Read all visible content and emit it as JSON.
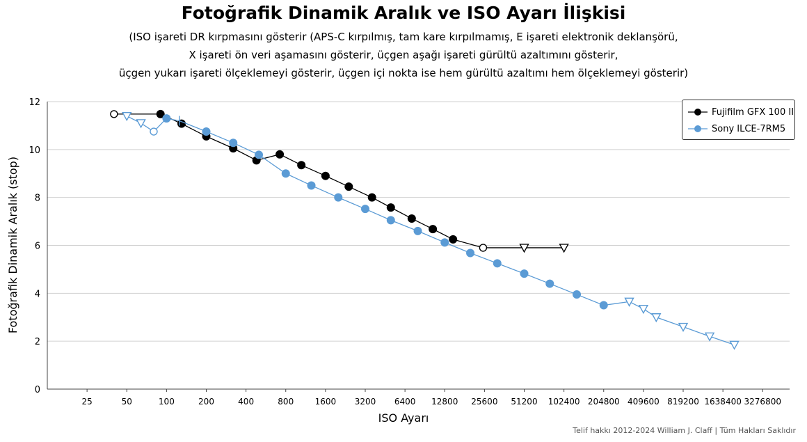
{
  "chart_data": {
    "type": "line",
    "title": "Fotoğrafik Dinamik Aralık ve ISO Ayarı İlişkisi",
    "subtitle_lines": [
      "(ISO işareti DR kırpmasını gösterir (APS-C kırpılmış, tam kare kırpılmamış, E işareti elektronik deklanşörü,",
      "X işareti ön veri aşamasını gösterir, üçgen aşağı işareti gürültü azaltımını gösterir,",
      "üçgen yukarı işareti ölçeklemeyi gösterir, üçgen içi nokta ise hem gürültü azaltımı hem ölçeklemeyi gösterir)"
    ],
    "xlabel": "ISO Ayarı",
    "ylabel": "Fotoğrafik Dinamik Aralık (stop)",
    "x_scale": "log2",
    "x_ticks": [
      25,
      50,
      100,
      200,
      400,
      800,
      1600,
      3200,
      6400,
      12800,
      25600,
      51200,
      102400,
      204800,
      409600,
      819200,
      1638400,
      3276800
    ],
    "x_tick_labels": [
      "25",
      "50",
      "100",
      "200",
      "400",
      "800",
      "1600",
      "3200",
      "6400",
      "12800",
      "25600",
      "51200",
      "102400",
      "204800",
      "409600",
      "819200",
      "1638400",
      "3276800"
    ],
    "ylim": [
      0,
      12
    ],
    "y_ticks": [
      0,
      2,
      4,
      6,
      8,
      10,
      12
    ],
    "y_tick_labels": [
      "0",
      "2",
      "4",
      "6",
      "8",
      "10",
      "12"
    ],
    "grid": true,
    "legend_position": "top-right",
    "copyright": "Telif hakkı 2012-2024 William J. Claff | Tüm Hakları Saklıdır",
    "series": [
      {
        "name": "Fujifilm GFX 100 II",
        "color": "#000000",
        "points": [
          {
            "x": 40,
            "y": 11.48,
            "marker": "open-circle"
          },
          {
            "x": 90,
            "y": 11.48,
            "marker": "circle"
          },
          {
            "x": 130,
            "y": 11.08,
            "marker": "circle"
          },
          {
            "x": 200,
            "y": 10.55,
            "marker": "circle"
          },
          {
            "x": 320,
            "y": 10.05,
            "marker": "circle"
          },
          {
            "x": 480,
            "y": 9.55,
            "marker": "circle"
          },
          {
            "x": 720,
            "y": 9.8,
            "marker": "circle"
          },
          {
            "x": 1050,
            "y": 9.35,
            "marker": "circle"
          },
          {
            "x": 1600,
            "y": 8.9,
            "marker": "circle"
          },
          {
            "x": 2400,
            "y": 8.45,
            "marker": "circle"
          },
          {
            "x": 3600,
            "y": 8.0,
            "marker": "circle"
          },
          {
            "x": 5000,
            "y": 7.58,
            "marker": "circle"
          },
          {
            "x": 7200,
            "y": 7.12,
            "marker": "circle"
          },
          {
            "x": 10400,
            "y": 6.68,
            "marker": "circle"
          },
          {
            "x": 14800,
            "y": 6.25,
            "marker": "circle"
          },
          {
            "x": 25000,
            "y": 5.9,
            "marker": "open-circle"
          },
          {
            "x": 51200,
            "y": 5.9,
            "marker": "triangle-down"
          },
          {
            "x": 102400,
            "y": 5.9,
            "marker": "triangle-down"
          }
        ]
      },
      {
        "name": "Sony ILCE-7RM5",
        "color": "#5b9bd5",
        "points": [
          {
            "x": 50,
            "y": 11.4,
            "marker": "triangle-down"
          },
          {
            "x": 64,
            "y": 11.1,
            "marker": "triangle-down"
          },
          {
            "x": 80,
            "y": 10.75,
            "marker": "open-circle"
          },
          {
            "x": 100,
            "y": 11.3,
            "marker": "circle"
          },
          {
            "x": 125,
            "y": 11.2,
            "marker": "iso-tick"
          },
          {
            "x": 200,
            "y": 10.75,
            "marker": "circle"
          },
          {
            "x": 320,
            "y": 10.28,
            "marker": "circle"
          },
          {
            "x": 500,
            "y": 9.78,
            "marker": "circle"
          },
          {
            "x": 800,
            "y": 9.0,
            "marker": "circle"
          },
          {
            "x": 1250,
            "y": 8.5,
            "marker": "circle"
          },
          {
            "x": 2000,
            "y": 8.0,
            "marker": "circle"
          },
          {
            "x": 3200,
            "y": 7.52,
            "marker": "circle"
          },
          {
            "x": 5000,
            "y": 7.05,
            "marker": "circle"
          },
          {
            "x": 8000,
            "y": 6.6,
            "marker": "circle"
          },
          {
            "x": 12800,
            "y": 6.12,
            "marker": "circle"
          },
          {
            "x": 20000,
            "y": 5.68,
            "marker": "circle"
          },
          {
            "x": 32000,
            "y": 5.25,
            "marker": "circle"
          },
          {
            "x": 51200,
            "y": 4.82,
            "marker": "circle"
          },
          {
            "x": 80000,
            "y": 4.4,
            "marker": "circle"
          },
          {
            "x": 128000,
            "y": 3.95,
            "marker": "circle"
          },
          {
            "x": 204800,
            "y": 3.5,
            "marker": "circle"
          },
          {
            "x": 320000,
            "y": 3.65,
            "marker": "triangle-down"
          },
          {
            "x": 409600,
            "y": 3.35,
            "marker": "triangle-down"
          },
          {
            "x": 512000,
            "y": 3.0,
            "marker": "triangle-down"
          },
          {
            "x": 819200,
            "y": 2.6,
            "marker": "triangle-down"
          },
          {
            "x": 1300000,
            "y": 2.2,
            "marker": "triangle-down"
          },
          {
            "x": 2000000,
            "y": 1.85,
            "marker": "triangle-down"
          }
        ]
      }
    ]
  }
}
